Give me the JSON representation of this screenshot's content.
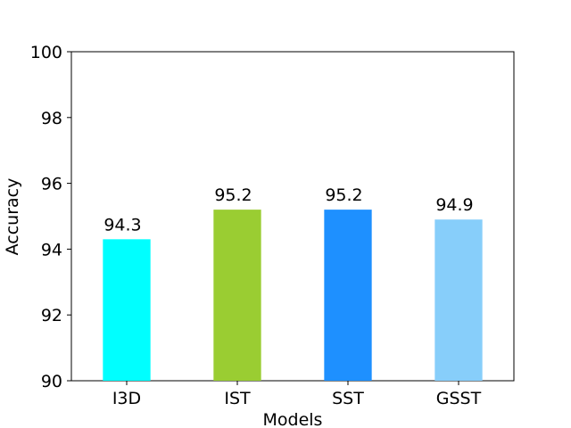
{
  "chart_data": {
    "type": "bar",
    "categories": [
      "I3D",
      "IST",
      "SST",
      "GSST"
    ],
    "values": [
      94.3,
      95.2,
      95.2,
      94.9
    ],
    "data_labels": [
      "94.3",
      "95.2",
      "95.2",
      "94.9"
    ],
    "colors": [
      "#00ffff",
      "#9acd32",
      "#1e90ff",
      "#87cefa"
    ],
    "title": "",
    "xlabel": "Models",
    "ylabel": "Accuracy",
    "ylim": [
      90,
      100
    ],
    "yticks": [
      90,
      92,
      94,
      96,
      98,
      100
    ],
    "grid": false,
    "legend": "none"
  }
}
